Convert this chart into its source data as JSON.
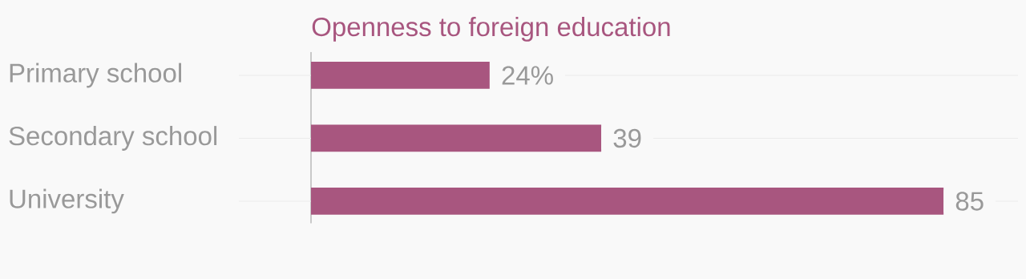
{
  "chart_data": {
    "type": "bar",
    "orientation": "horizontal",
    "title": "Openness to foreign education",
    "categories": [
      "Primary school",
      "Secondary school",
      "University"
    ],
    "values": [
      24,
      39,
      85
    ],
    "value_labels": [
      "24%",
      "39",
      "85"
    ],
    "color": "#a8567f",
    "xlim": [
      0,
      95
    ],
    "grid": "y",
    "tick_labels": "y"
  }
}
